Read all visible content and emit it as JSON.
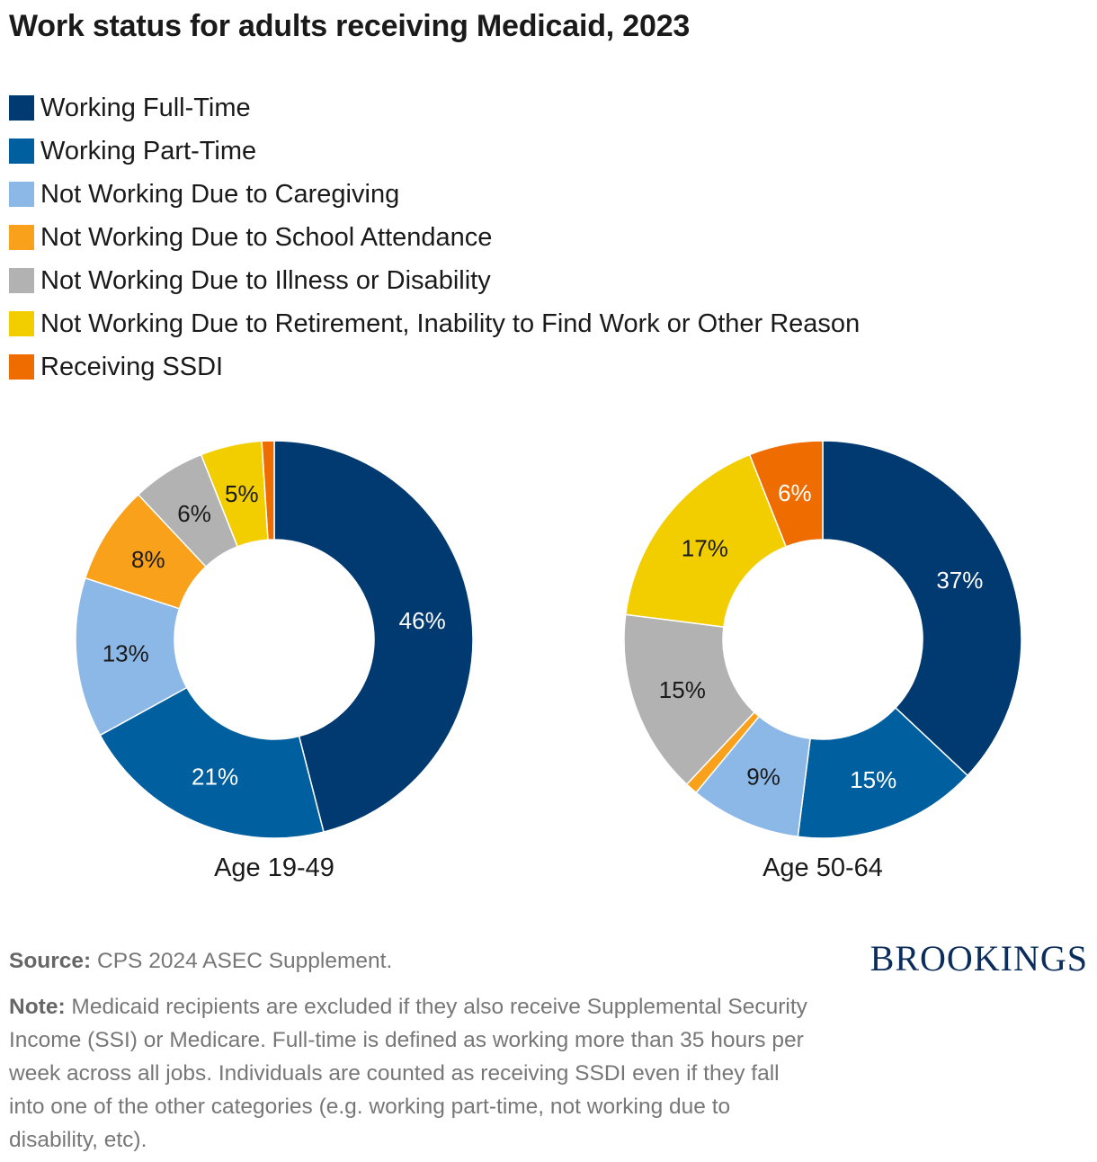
{
  "title": "Work status for adults receiving Medicaid, 2023",
  "legend": [
    {
      "label": "Working Full-Time",
      "color": "#003a70"
    },
    {
      "label": "Working Part-Time",
      "color": "#00609f"
    },
    {
      "label": "Not Working Due to Caregiving",
      "color": "#8cb8e8"
    },
    {
      "label": "Not Working Due to School Attendance",
      "color": "#f9a11b"
    },
    {
      "label": "Not Working Due to Illness or Disability",
      "color": "#b2b2b2"
    },
    {
      "label": "Not Working Due to Retirement, Inability to Find Work or Other Reason",
      "color": "#f2cd00"
    },
    {
      "label": "Receiving SSDI",
      "color": "#ee6c00"
    }
  ],
  "chart_data": [
    {
      "type": "pie",
      "variant": "donut",
      "title": "Age 19-49",
      "categories": [
        "Working Full-Time",
        "Working Part-Time",
        "Not Working Due to Caregiving",
        "Not Working Due to School Attendance",
        "Not Working Due to Illness or Disability",
        "Not Working Due to Retirement, Inability to Find Work or Other Reason",
        "Receiving SSDI"
      ],
      "values": [
        46,
        21,
        13,
        8,
        6,
        5,
        1
      ],
      "labels": [
        "46%",
        "21%",
        "13%",
        "8%",
        "6%",
        "5%",
        ""
      ]
    },
    {
      "type": "pie",
      "variant": "donut",
      "title": "Age 50-64",
      "categories": [
        "Working Full-Time",
        "Working Part-Time",
        "Not Working Due to Caregiving",
        "Not Working Due to School Attendance",
        "Not Working Due to Illness or Disability",
        "Not Working Due to Retirement, Inability to Find Work or Other Reason",
        "Receiving SSDI"
      ],
      "values": [
        37,
        15,
        9,
        1,
        15,
        17,
        6
      ],
      "labels": [
        "37%",
        "15%",
        "9%",
        "",
        "15%",
        "17%",
        "6%"
      ]
    }
  ],
  "footer": {
    "source_label": "Source:",
    "source_text": " CPS 2024 ASEC Supplement.",
    "note_label": "Note:",
    "note_text": " Medicaid recipients are excluded if they also receive Supplemental Security Income (SSI) or Medicare. Full-time is defined as working more than 35 hours per week across all jobs. Individuals are counted as receiving SSDI even if they fall into one of the other categories (e.g. working part-time, not working due to disability, etc)."
  },
  "brand": "BROOKINGS"
}
